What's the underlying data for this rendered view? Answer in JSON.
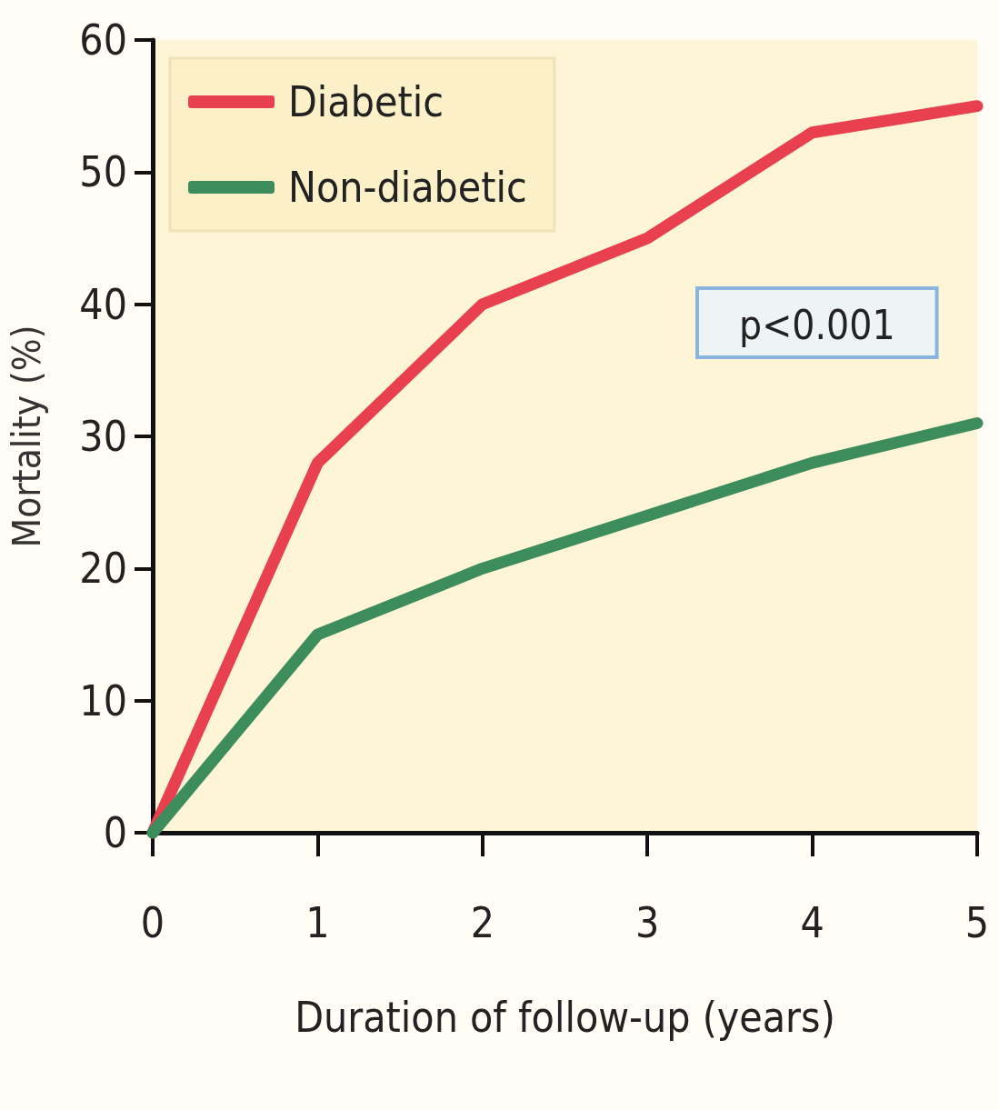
{
  "chart_data": {
    "type": "line",
    "xlabel": "Duration of follow-up (years)",
    "ylabel": "Mortality (%)",
    "x": [
      0,
      1,
      2,
      3,
      4,
      5
    ],
    "series": [
      {
        "name": "Diabetic",
        "color": "#e8404f",
        "values": [
          0,
          28,
          40,
          45,
          53,
          55
        ]
      },
      {
        "name": "Non-diabetic",
        "color": "#3d8c5c",
        "values": [
          0,
          15,
          20,
          24,
          28,
          31
        ]
      }
    ],
    "xlim": [
      0,
      5
    ],
    "xticks": [
      0,
      1,
      2,
      3,
      4,
      5
    ],
    "ylim": [
      0,
      60
    ],
    "yticks": [
      0,
      10,
      20,
      30,
      40,
      50,
      60
    ],
    "annotations": [
      "p<0.001"
    ],
    "grid": false,
    "legend": "top left",
    "marker": "none",
    "line_style": "solid"
  }
}
